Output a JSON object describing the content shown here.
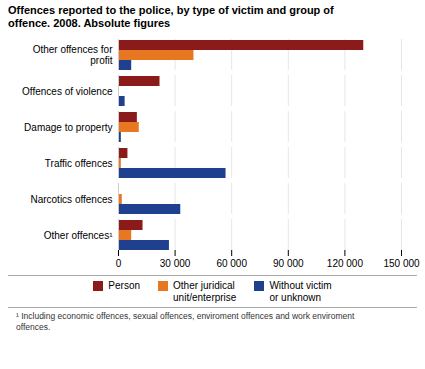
{
  "chart_data": {
    "type": "bar",
    "orientation": "horizontal",
    "title": "Offences reported to the police, by type of victim and group of\noffence. 2008. Absolute figures",
    "categories": [
      "Other offences for\nprofit",
      "Offences of violence",
      "Damage to property",
      "Traffic offences",
      "Narcotics offences",
      "Other offences¹"
    ],
    "series": [
      {
        "name": "Person",
        "color": "#8B1A1A",
        "values": [
          130000,
          22000,
          10000,
          5000,
          200,
          13000
        ]
      },
      {
        "name": "Other juridical\nunit/enterprise",
        "color": "#E87722",
        "values": [
          40000,
          0,
          11000,
          1500,
          2000,
          7000
        ]
      },
      {
        "name": "Without victim\nor unknown",
        "color": "#1F3F8F",
        "values": [
          7000,
          3500,
          1500,
          57000,
          33000,
          27000
        ]
      }
    ],
    "xlim": [
      0,
      150000
    ],
    "xticks": [
      0,
      {
        "value": 30000,
        "label": "30 000"
      },
      {
        "value": 60000,
        "label": "60 000"
      },
      {
        "value": 90000,
        "label": "90 000"
      },
      {
        "value": 120000,
        "label": "120 000"
      },
      {
        "value": 150000,
        "label": "150 000"
      }
    ],
    "grid": true,
    "legend": "bottom",
    "annotations": [
      "¹ Including economic offences, sexual offences, enviroment offences and work enviroment\noffences."
    ]
  }
}
